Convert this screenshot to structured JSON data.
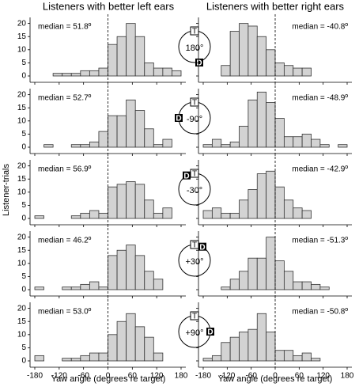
{
  "column_titles": [
    "Listeners with better left ears",
    "Listeners with better right ears"
  ],
  "y_label": "Listener-trials",
  "x_label": "Yaw angle (degrees re target)",
  "conditions": [
    "180°",
    "-90°",
    "-30°",
    "+30°",
    "+90°"
  ],
  "icon_labels": [
    "T",
    "D"
  ],
  "chart_data": [
    {
      "type": "histogram",
      "annotation": "median = 51.8º",
      "bins": [
        -180,
        -157.5,
        -135,
        -112.5,
        -90,
        -67.5,
        -45,
        -22.5,
        0,
        22.5,
        45,
        67.5,
        90,
        112.5,
        135,
        157.5,
        180
      ],
      "counts": [
        0,
        0,
        1,
        1,
        1,
        2,
        2,
        3,
        12,
        15,
        20,
        15,
        5,
        3,
        3,
        2
      ],
      "color": "#d3d3d3",
      "xlim": [
        -180,
        180
      ],
      "ylim": [
        0,
        22
      ],
      "xticks": [
        -180,
        -120,
        -60,
        0,
        60,
        120,
        180
      ],
      "yticks": [
        0,
        5,
        10,
        15,
        20
      ],
      "vline": 0
    },
    {
      "type": "histogram",
      "annotation": "median = -40.8º",
      "bins": [
        -180,
        -157.5,
        -135,
        -112.5,
        -90,
        -67.5,
        -45,
        -22.5,
        0,
        22.5,
        45,
        67.5,
        90,
        112.5,
        135,
        157.5,
        180
      ],
      "counts": [
        0,
        0,
        4,
        17,
        20,
        19,
        15,
        10,
        5,
        4,
        3,
        3,
        0,
        0,
        0,
        0
      ],
      "color": "#d3d3d3",
      "xlim": [
        -180,
        180
      ],
      "ylim": [
        0,
        22
      ],
      "xticks": [
        -180,
        -120,
        -60,
        0,
        60,
        120,
        180
      ],
      "yticks": [
        0,
        5,
        10,
        15,
        20
      ],
      "vline": 0
    },
    {
      "type": "histogram",
      "annotation": "median = 52.7º",
      "bins": [
        -180,
        -157.5,
        -135,
        -112.5,
        -90,
        -67.5,
        -45,
        -22.5,
        0,
        22.5,
        45,
        67.5,
        90,
        112.5,
        135,
        157.5,
        180
      ],
      "counts": [
        0,
        1,
        0,
        0,
        1,
        1,
        2,
        6,
        12,
        12,
        18,
        14,
        7,
        1,
        3,
        0
      ],
      "color": "#d3d3d3",
      "xlim": [
        -180,
        180
      ],
      "ylim": [
        0,
        22
      ],
      "xticks": [
        -180,
        -120,
        -60,
        0,
        60,
        120,
        180
      ],
      "yticks": [
        0,
        5,
        10,
        15,
        20
      ],
      "vline": 0
    },
    {
      "type": "histogram",
      "annotation": "median = -48.9º",
      "bins": [
        -180,
        -157.5,
        -135,
        -112.5,
        -90,
        -67.5,
        -45,
        -22.5,
        0,
        22.5,
        45,
        67.5,
        90,
        112.5,
        135,
        157.5,
        180
      ],
      "counts": [
        1,
        3,
        1,
        2,
        8,
        18,
        21,
        17,
        11,
        4,
        4,
        5,
        3,
        1,
        0,
        1
      ],
      "color": "#d3d3d3",
      "xlim": [
        -180,
        180
      ],
      "ylim": [
        0,
        22
      ],
      "xticks": [
        -180,
        -120,
        -60,
        0,
        60,
        120,
        180
      ],
      "yticks": [
        0,
        5,
        10,
        15,
        20
      ],
      "vline": 0
    },
    {
      "type": "histogram",
      "annotation": "median = 56.9º",
      "bins": [
        -180,
        -157.5,
        -135,
        -112.5,
        -90,
        -67.5,
        -45,
        -22.5,
        0,
        22.5,
        45,
        67.5,
        90,
        112.5,
        135,
        157.5,
        180
      ],
      "counts": [
        1,
        0,
        0,
        0,
        1,
        2,
        3,
        2,
        12,
        13,
        14,
        13,
        7,
        2,
        4,
        0
      ],
      "color": "#d3d3d3",
      "xlim": [
        -180,
        180
      ],
      "ylim": [
        0,
        22
      ],
      "xticks": [
        -180,
        -120,
        -60,
        0,
        60,
        120,
        180
      ],
      "yticks": [
        0,
        5,
        10,
        15,
        20
      ],
      "vline": 0
    },
    {
      "type": "histogram",
      "annotation": "median = -42.9º",
      "bins": [
        -180,
        -157.5,
        -135,
        -112.5,
        -90,
        -67.5,
        -45,
        -22.5,
        0,
        22.5,
        45,
        67.5,
        90,
        112.5,
        135,
        157.5,
        180
      ],
      "counts": [
        3,
        4,
        2,
        2,
        7,
        11,
        17,
        18,
        12,
        7,
        4,
        3,
        0,
        0,
        0,
        0
      ],
      "color": "#d3d3d3",
      "xlim": [
        -180,
        180
      ],
      "ylim": [
        0,
        22
      ],
      "xticks": [
        -180,
        -120,
        -60,
        0,
        60,
        120,
        180
      ],
      "yticks": [
        0,
        5,
        10,
        15,
        20
      ],
      "vline": 0
    },
    {
      "type": "histogram",
      "annotation": "median = 46.2º",
      "bins": [
        -180,
        -157.5,
        -135,
        -112.5,
        -90,
        -67.5,
        -45,
        -22.5,
        0,
        22.5,
        45,
        67.5,
        90,
        112.5,
        135,
        157.5,
        180
      ],
      "counts": [
        1,
        0,
        0,
        1,
        1,
        2,
        3,
        1,
        13,
        15,
        17,
        13,
        7,
        4,
        0,
        0
      ],
      "color": "#d3d3d3",
      "xlim": [
        -180,
        180
      ],
      "ylim": [
        0,
        22
      ],
      "xticks": [
        -180,
        -120,
        -60,
        0,
        60,
        120,
        180
      ],
      "yticks": [
        0,
        5,
        10,
        15,
        20
      ],
      "vline": 0
    },
    {
      "type": "histogram",
      "annotation": "median = -51.3º",
      "bins": [
        -180,
        -157.5,
        -135,
        -112.5,
        -90,
        -67.5,
        -45,
        -22.5,
        0,
        22.5,
        45,
        67.5,
        90,
        112.5,
        135,
        157.5,
        180
      ],
      "counts": [
        0,
        0,
        1,
        4,
        7,
        12,
        12,
        20,
        11,
        7,
        3,
        3,
        2,
        1,
        0,
        0
      ],
      "color": "#d3d3d3",
      "xlim": [
        -180,
        180
      ],
      "ylim": [
        0,
        22
      ],
      "xticks": [
        -180,
        -120,
        -60,
        0,
        60,
        120,
        180
      ],
      "yticks": [
        0,
        5,
        10,
        15,
        20
      ],
      "vline": 0
    },
    {
      "type": "histogram",
      "annotation": "median = 53.0º",
      "bins": [
        -180,
        -157.5,
        -135,
        -112.5,
        -90,
        -67.5,
        -45,
        -22.5,
        0,
        22.5,
        45,
        67.5,
        90,
        112.5,
        135,
        157.5,
        180
      ],
      "counts": [
        2,
        0,
        0,
        1,
        1,
        2,
        3,
        3,
        10,
        15,
        18,
        13,
        9,
        3,
        0,
        0
      ],
      "color": "#d3d3d3",
      "xlim": [
        -180,
        180
      ],
      "ylim": [
        0,
        22
      ],
      "xticks": [
        -180,
        -120,
        -60,
        0,
        60,
        120,
        180
      ],
      "yticks": [
        0,
        5,
        10,
        15,
        20
      ],
      "vline": 0
    },
    {
      "type": "histogram",
      "annotation": "median = -50.8º",
      "bins": [
        -180,
        -157.5,
        -135,
        -112.5,
        -90,
        -67.5,
        -45,
        -22.5,
        0,
        22.5,
        45,
        67.5,
        90,
        112.5,
        135,
        157.5,
        180
      ],
      "counts": [
        1,
        2,
        7,
        9,
        11,
        12,
        18,
        11,
        4,
        4,
        2,
        3,
        1,
        0,
        0,
        0
      ],
      "color": "#d3d3d3",
      "xlim": [
        -180,
        180
      ],
      "ylim": [
        0,
        22
      ],
      "xticks": [
        -180,
        -120,
        -60,
        0,
        60,
        120,
        180
      ],
      "yticks": [
        0,
        5,
        10,
        15,
        20
      ],
      "vline": 0
    }
  ]
}
